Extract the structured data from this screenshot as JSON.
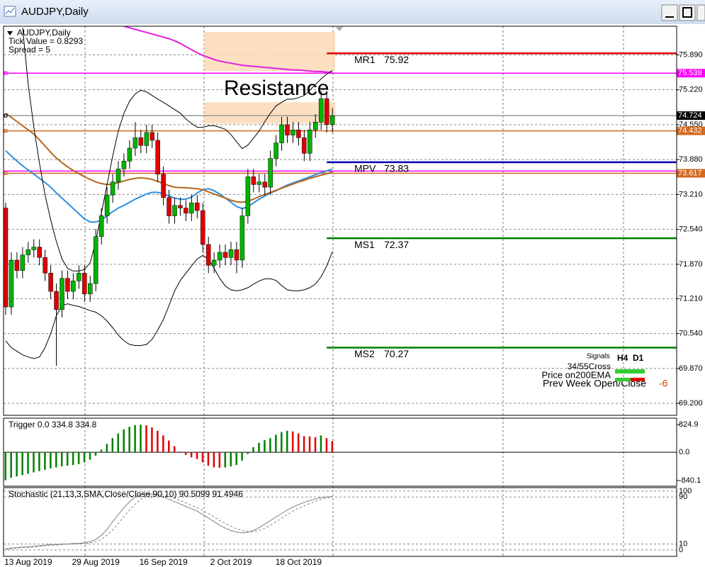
{
  "window": {
    "title": "AUDJPY,Daily"
  },
  "chart_data": [
    {
      "type": "candlestick",
      "info": [
        "AUDJPY,Daily",
        "Tick Value = 0.8293",
        "Spread = 5"
      ],
      "categories": [
        null,
        null,
        null,
        null,
        "13 Aug 2019",
        null,
        null,
        null,
        null,
        null,
        null,
        null,
        null,
        null,
        null,
        null,
        "29 Aug 2019",
        null,
        null,
        null,
        null,
        null,
        null,
        null,
        null,
        null,
        null,
        null,
        "16 Sep 2019",
        null,
        null,
        null,
        null,
        null,
        null,
        null,
        null,
        null,
        null,
        null,
        "2 Oct 2019",
        null,
        null,
        null,
        null,
        null,
        null,
        null,
        null,
        null,
        null,
        null,
        "18 Oct 2019",
        null,
        null,
        null,
        null,
        null,
        null
      ],
      "open": [
        72.95,
        71.05,
        71.95,
        71.75,
        72.05,
        72.15,
        72.2,
        72.0,
        71.7,
        71.35,
        71.0,
        71.6,
        71.35,
        71.55,
        71.7,
        71.3,
        71.5,
        72.4,
        72.8,
        73.2,
        73.45,
        73.7,
        73.85,
        74.1,
        74.3,
        74.15,
        74.4,
        74.25,
        73.6,
        73.15,
        72.8,
        73.0,
        72.95,
        72.85,
        73.05,
        72.9,
        72.25,
        71.85,
        71.95,
        72.1,
        72.0,
        72.15,
        71.95,
        72.8,
        73.55,
        73.4,
        73.45,
        73.35,
        73.9,
        74.2,
        74.55,
        74.35,
        74.45,
        74.3,
        74.0,
        74.45,
        74.6,
        75.05,
        74.55
      ],
      "high": [
        73.05,
        72.1,
        72.1,
        72.2,
        72.3,
        72.35,
        72.35,
        72.15,
        71.85,
        71.5,
        71.75,
        71.75,
        71.7,
        71.85,
        71.85,
        71.65,
        72.55,
        72.95,
        73.35,
        73.6,
        73.85,
        74.0,
        74.25,
        74.6,
        74.45,
        74.55,
        74.55,
        74.4,
        73.75,
        73.3,
        73.15,
        73.15,
        73.1,
        73.2,
        73.2,
        73.05,
        72.4,
        72.1,
        72.25,
        72.25,
        72.3,
        72.3,
        72.95,
        73.7,
        73.7,
        73.6,
        73.6,
        74.05,
        74.35,
        74.7,
        74.7,
        74.6,
        74.6,
        74.45,
        74.6,
        74.75,
        75.2,
        75.2,
        74.87
      ],
      "low": [
        70.9,
        70.9,
        71.6,
        71.6,
        71.9,
        72.0,
        71.85,
        71.55,
        71.2,
        69.92,
        70.85,
        71.2,
        71.2,
        71.4,
        71.15,
        71.15,
        71.35,
        72.25,
        72.65,
        73.05,
        73.3,
        73.55,
        73.7,
        73.95,
        74.0,
        74.0,
        74.1,
        73.45,
        73.0,
        72.65,
        72.65,
        72.8,
        72.7,
        72.7,
        72.75,
        72.1,
        71.7,
        71.7,
        71.8,
        71.85,
        71.85,
        71.7,
        71.8,
        72.65,
        73.25,
        73.25,
        73.2,
        73.2,
        73.75,
        74.05,
        74.2,
        74.2,
        74.15,
        73.85,
        73.85,
        74.3,
        74.45,
        74.4,
        74.4
      ],
      "close": [
        71.05,
        71.95,
        71.75,
        72.05,
        72.15,
        72.2,
        72.0,
        71.7,
        71.35,
        71.0,
        71.6,
        71.35,
        71.55,
        71.7,
        71.3,
        71.5,
        72.4,
        72.8,
        73.2,
        73.45,
        73.7,
        73.85,
        74.1,
        74.3,
        74.15,
        74.4,
        74.25,
        73.6,
        73.15,
        72.8,
        73.0,
        72.95,
        72.85,
        73.05,
        72.9,
        72.25,
        71.85,
        71.95,
        72.1,
        72.0,
        72.15,
        71.95,
        72.8,
        73.55,
        73.4,
        73.45,
        73.35,
        73.9,
        74.2,
        74.55,
        74.35,
        74.45,
        74.3,
        74.0,
        74.45,
        74.6,
        75.05,
        74.55,
        74.72
      ],
      "up_color": "#00b400",
      "down_color": "#e00000",
      "series": [
        {
          "color": "#2f8fde",
          "values": [
            74.05,
            73.95,
            73.85,
            73.76,
            73.68,
            73.6,
            73.52,
            73.44,
            73.35,
            73.24,
            73.14,
            73.04,
            72.94,
            72.84,
            72.74,
            72.68,
            72.68,
            72.72,
            72.8,
            72.88,
            72.95,
            73.0,
            73.06,
            73.12,
            73.17,
            73.22,
            73.25,
            73.25,
            73.22,
            73.18,
            73.14,
            73.12,
            73.12,
            73.16,
            73.24,
            73.3,
            73.32,
            73.28,
            73.22,
            73.14,
            73.06,
            72.98,
            72.94,
            72.97,
            73.05,
            73.12,
            73.18,
            73.24,
            73.28,
            73.34,
            73.39,
            73.43,
            73.47,
            73.51,
            73.55,
            73.59,
            73.63,
            73.66,
            73.7
          ]
        },
        {
          "color": "#b5651d",
          "values": [
            74.77,
            74.69,
            74.61,
            74.53,
            74.45,
            74.37,
            74.26,
            74.14,
            74.02,
            73.91,
            73.82,
            73.74,
            73.67,
            73.61,
            73.55,
            73.5,
            73.45,
            73.42,
            73.4,
            73.41,
            73.44,
            73.47,
            73.5,
            73.52,
            73.53,
            73.52,
            73.5,
            73.46,
            73.42,
            73.38,
            73.35,
            73.34,
            73.34,
            73.33,
            73.32,
            73.3,
            73.26,
            73.22,
            73.18,
            73.14,
            73.1,
            73.07,
            73.06,
            73.08,
            73.12,
            73.17,
            73.21,
            73.25,
            73.29,
            73.33,
            73.37,
            73.41,
            73.45,
            73.48,
            73.52,
            73.55,
            73.58,
            73.61,
            73.64
          ]
        },
        {
          "color": "#e020e0",
          "values": [
            null,
            null,
            null,
            null,
            null,
            null,
            null,
            null,
            null,
            null,
            null,
            null,
            null,
            null,
            null,
            null,
            null,
            null,
            null,
            null,
            null,
            76.44,
            76.41,
            76.38,
            76.35,
            76.32,
            76.29,
            76.26,
            76.23,
            76.2,
            76.16,
            76.11,
            76.05,
            75.99,
            75.93,
            75.88,
            75.84,
            75.8,
            75.77,
            75.75,
            75.73,
            75.71,
            75.69,
            75.68,
            75.67,
            75.66,
            75.65,
            75.64,
            75.63,
            75.62,
            75.61,
            75.6,
            75.6,
            75.59,
            75.58,
            75.57,
            75.57,
            75.56,
            75.56
          ]
        },
        {
          "color": "#000000",
          "values": [
            null,
            null,
            null,
            76.41,
            75.32,
            74.5,
            73.81,
            73.2,
            72.72,
            72.31,
            71.97,
            71.79,
            71.74,
            71.74,
            71.77,
            71.9,
            72.31,
            72.86,
            73.4,
            73.95,
            74.43,
            74.77,
            75.0,
            75.14,
            75.21,
            75.18,
            75.11,
            75.04,
            74.98,
            74.91,
            74.84,
            74.77,
            74.66,
            74.57,
            74.5,
            74.5,
            74.53,
            74.53,
            74.5,
            74.46,
            74.36,
            74.22,
            74.09,
            74.16,
            74.29,
            74.43,
            74.61,
            74.77,
            74.91,
            74.98,
            75.04,
            75.04,
            75.07,
            75.11,
            75.21,
            75.32,
            75.43,
            75.52,
            75.59
          ]
        },
        {
          "color": "#000000",
          "values": [
            70.4,
            70.27,
            70.2,
            70.13,
            70.09,
            70.06,
            70.09,
            70.27,
            70.54,
            70.88,
            71.08,
            71.11,
            71.08,
            71.06,
            71.02,
            70.98,
            70.95,
            70.88,
            70.78,
            70.65,
            70.51,
            70.4,
            70.33,
            70.31,
            70.31,
            70.33,
            70.43,
            70.61,
            70.81,
            71.08,
            71.36,
            71.56,
            71.7,
            71.84,
            71.97,
            72.04,
            71.97,
            71.79,
            71.6,
            71.45,
            71.38,
            71.36,
            71.38,
            71.42,
            71.49,
            71.55,
            71.59,
            71.59,
            71.56,
            71.46,
            71.38,
            71.36,
            71.36,
            71.38,
            71.42,
            71.49,
            71.63,
            71.84,
            72.11
          ]
        }
      ],
      "ylim": [
        68.97,
        76.44
      ],
      "yticks": [
        {
          "value": 75.89,
          "label": "75.890"
        },
        {
          "value": 75.22,
          "label": "75.220"
        },
        {
          "value": 74.55,
          "label": "74.550"
        },
        {
          "value": 73.88,
          "label": "73.880"
        },
        {
          "value": 73.21,
          "label": "73.210"
        },
        {
          "value": 72.54,
          "label": "72.540"
        },
        {
          "value": 71.87,
          "label": "71.870"
        },
        {
          "value": 71.21,
          "label": "71.210"
        },
        {
          "value": 70.54,
          "label": "70.540"
        },
        {
          "value": 69.87,
          "label": "69.870"
        },
        {
          "value": 69.2,
          "label": "69.200"
        }
      ],
      "grid": true,
      "zones": [
        {
          "start": 35,
          "ylim": [
            75.58,
            76.33
          ],
          "color": "#fcd9b6"
        },
        {
          "start": 35,
          "ylim": [
            74.57,
            74.98
          ],
          "color": "#fcd9b6"
        }
      ],
      "annotation": "Resistance",
      "pivots": [
        {
          "name": "MR1",
          "value": 75.92,
          "color": "#e00000"
        },
        {
          "name": "MPV",
          "value": 73.83,
          "color": "#0000b0"
        },
        {
          "name": "MS1",
          "value": 72.37,
          "color": "#008000"
        },
        {
          "name": "MS2",
          "value": 70.27,
          "color": "#008000"
        }
      ],
      "price_lines": [
        {
          "value": 75.539,
          "color": "#ff00ff"
        },
        {
          "value": 74.724,
          "color": "#000000"
        },
        {
          "value": 74.432,
          "color": "#d2691e"
        },
        {
          "value": 73.617,
          "color": "#d2691e"
        }
      ],
      "lines": [
        {
          "value": 73.66,
          "color": "#ff00ff"
        }
      ],
      "signals": {
        "title": "Signals",
        "columns": [
          "H4",
          "D1"
        ],
        "rows": [
          "34/55Cross",
          "Price on200EMA",
          "Prev Week Open/Close"
        ],
        "value": -6
      }
    },
    {
      "type": "histogram",
      "title": "Trigger 0.0 334.8 334.8",
      "values": [
        -830,
        -760,
        -720,
        -680,
        -640,
        -600,
        -560,
        -520,
        -480,
        -450,
        -420,
        -400,
        -380,
        -350,
        -300,
        -220,
        -100,
        80,
        250,
        420,
        560,
        680,
        760,
        810,
        820,
        800,
        740,
        640,
        500,
        350,
        180,
        20,
        -80,
        -150,
        -200,
        -300,
        -400,
        -450,
        -460,
        -450,
        -420,
        -380,
        -250,
        -50,
        150,
        280,
        360,
        420,
        520,
        600,
        640,
        620,
        560,
        480,
        470,
        450,
        500,
        420,
        334.8
      ],
      "up_color": "#008000",
      "down_color": "#e00000",
      "ylim": [
        -1010,
        1015
      ],
      "yticks": [
        824.9,
        {
          "value": 0,
          "label": "0.0"
        },
        -840.1
      ]
    },
    {
      "type": "line",
      "title": "Stochastic (21,13,3,SMA,Close/Close,90,10) 90.5099 91.4946",
      "series": [
        {
          "color": "#808080",
          "values": [
            2,
            3,
            4,
            5,
            5,
            6,
            7,
            8,
            9,
            9,
            10,
            10,
            11,
            11,
            12,
            14,
            18,
            25,
            35,
            48,
            60,
            72,
            82,
            90,
            94,
            96,
            95,
            93,
            90,
            86,
            82,
            78,
            74,
            70,
            66,
            60,
            54,
            48,
            42,
            37,
            33,
            30,
            29,
            30,
            33,
            38,
            44,
            50,
            56,
            62,
            68,
            73,
            77,
            81,
            84,
            87,
            89,
            90,
            90.5099
          ]
        },
        {
          "color": "#808080",
          "dashed": true,
          "values": [
            1,
            2,
            3,
            4,
            4,
            5,
            6,
            7,
            8,
            8,
            9,
            10,
            10,
            11,
            11,
            12,
            14,
            18,
            25,
            34,
            45,
            57,
            68,
            78,
            86,
            91,
            94,
            95,
            94,
            91,
            88,
            84,
            80,
            76,
            72,
            67,
            62,
            56,
            50,
            45,
            40,
            36,
            33,
            31,
            31,
            33,
            37,
            42,
            48,
            54,
            60,
            66,
            71,
            75,
            79,
            83,
            86,
            88,
            91.4946
          ]
        }
      ],
      "ylim": [
        -11,
        106
      ],
      "yticks": [
        100,
        90,
        10,
        0
      ]
    }
  ]
}
